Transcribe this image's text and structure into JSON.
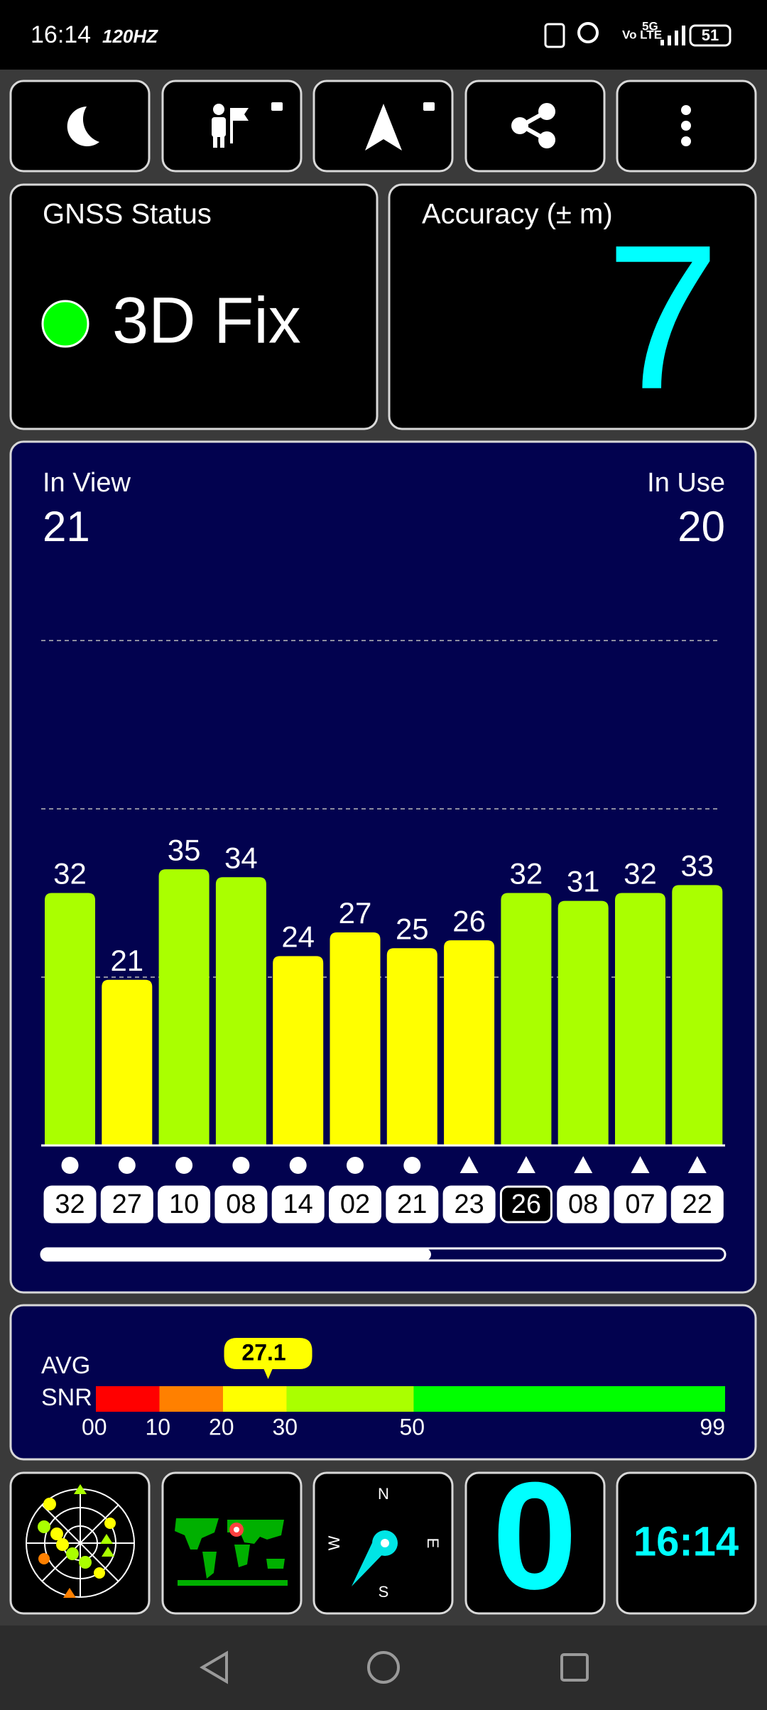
{
  "status_bar": {
    "time": "16:14",
    "refresh_rate": "120HZ",
    "volte": "Vo LTE",
    "network": "5G",
    "battery": "51"
  },
  "gnss_status": {
    "title": "GNSS Status",
    "fix": "3D Fix"
  },
  "accuracy": {
    "title": "Accuracy (± m)",
    "value": 7
  },
  "chart_data": {
    "type": "bar",
    "in_view_label": "In View",
    "in_view": 21,
    "in_use_label": "In Use",
    "in_use": 20,
    "ylim": [
      0,
      64
    ],
    "categories": [
      "32",
      "27",
      "10",
      "08",
      "14",
      "02",
      "21",
      "23",
      "26",
      "08",
      "07",
      "22"
    ],
    "values": [
      32,
      21,
      35,
      34,
      24,
      27,
      25,
      26,
      32,
      31,
      32,
      33
    ],
    "colors": [
      "#aaff00",
      "#ffff00",
      "#aaff00",
      "#aaff00",
      "#ffff00",
      "#ffff00",
      "#ffff00",
      "#ffff00",
      "#aaff00",
      "#aaff00",
      "#aaff00",
      "#aaff00"
    ],
    "markers": [
      "circle",
      "circle",
      "circle",
      "circle",
      "circle",
      "circle",
      "circle",
      "triangle",
      "triangle",
      "triangle",
      "triangle",
      "triangle"
    ],
    "id_styles": [
      "filled",
      "filled",
      "filled",
      "filled",
      "filled",
      "filled",
      "filled",
      "filled",
      "outlined",
      "filled",
      "filled",
      "filled"
    ]
  },
  "snr": {
    "label_top": "AVG",
    "label_bottom": "SNR",
    "value": 27.1,
    "xlim": [
      0,
      99
    ],
    "ticks": [
      {
        "value": 0,
        "label": "00"
      },
      10,
      20,
      30,
      50,
      99
    ],
    "segment_colors": [
      "#ff0000",
      "#ff8000",
      "#ffff00",
      "#aaff00",
      "#00ff00"
    ]
  },
  "tiles": {
    "compass": {
      "north": "N",
      "east": "E",
      "south": "S",
      "west": "W"
    },
    "speed": 0,
    "clock": "16:14"
  }
}
